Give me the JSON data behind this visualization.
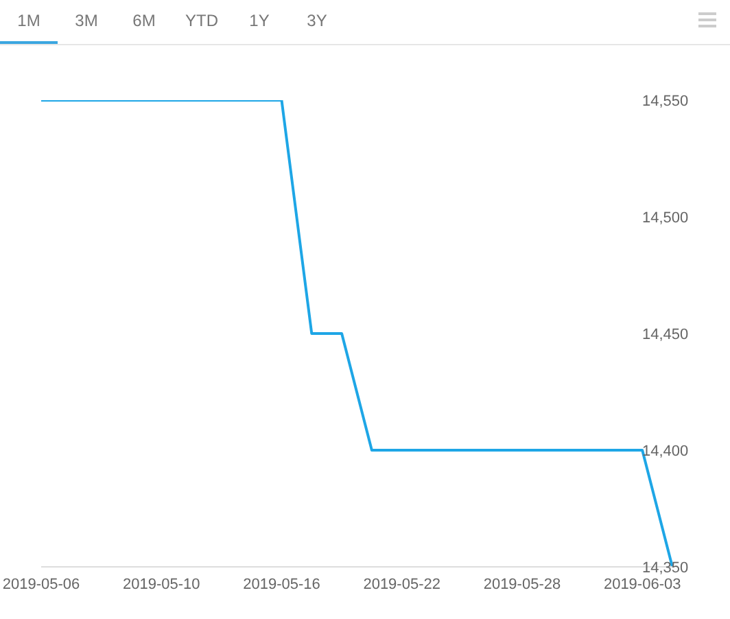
{
  "chart_data": {
    "type": "line",
    "categories": [
      "2019-05-06",
      null,
      null,
      null,
      "2019-05-10",
      null,
      null,
      null,
      "2019-05-16",
      null,
      null,
      null,
      "2019-05-22",
      null,
      null,
      null,
      "2019-05-28",
      null,
      null,
      null,
      "2019-06-03",
      null
    ],
    "series": [
      {
        "color": "#1ea6e6",
        "values": [
          14550,
          14550,
          14550,
          14550,
          14550,
          14550,
          14550,
          14550,
          14550,
          14450,
          14450,
          14400,
          14400,
          14400,
          14400,
          14400,
          14400,
          14400,
          14400,
          14400,
          14400,
          14350
        ]
      }
    ],
    "ylim": [
      14350,
      14550
    ],
    "yticks": [
      {
        "value": 14350,
        "label": "14,350"
      },
      {
        "value": 14400,
        "label": "14,400"
      },
      {
        "value": 14450,
        "label": "14,450"
      },
      {
        "value": 14500,
        "label": "14,500"
      },
      {
        "value": 14550,
        "label": "14,550"
      }
    ],
    "grid": false,
    "marker": "none",
    "line_style": "solid",
    "annotations": [
      "1M",
      "3M",
      "6M",
      "YTD",
      "1Y",
      "3Y"
    ]
  }
}
